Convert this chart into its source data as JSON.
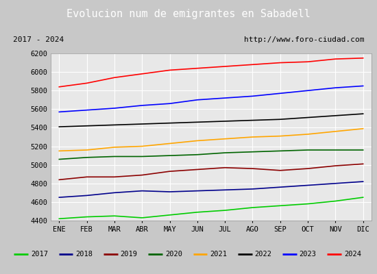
{
  "title": "Evolucion num de emigrantes en Sabadell",
  "title_bg": "#4472c4",
  "subtitle_left": "2017 - 2024",
  "subtitle_right": "http://www.foro-ciudad.com",
  "months": [
    "ENE",
    "FEB",
    "MAR",
    "ABR",
    "MAY",
    "JUN",
    "JUL",
    "AGO",
    "SEP",
    "OCT",
    "NOV",
    "DIC"
  ],
  "ylim": [
    4400,
    6200
  ],
  "yticks": [
    4400,
    4600,
    4800,
    5000,
    5200,
    5400,
    5600,
    5800,
    6000,
    6200
  ],
  "series": {
    "2017": {
      "color": "#00cc00",
      "values": [
        4420,
        4440,
        4450,
        4430,
        4460,
        4490,
        4510,
        4540,
        4560,
        4580,
        4610,
        4650
      ]
    },
    "2018": {
      "color": "#00008b",
      "values": [
        4650,
        4670,
        4700,
        4720,
        4710,
        4720,
        4730,
        4740,
        4760,
        4780,
        4800,
        4820
      ]
    },
    "2019": {
      "color": "#8b0000",
      "values": [
        4840,
        4870,
        4870,
        4890,
        4930,
        4950,
        4970,
        4960,
        4940,
        4960,
        4990,
        5010
      ]
    },
    "2020": {
      "color": "#006400",
      "values": [
        5060,
        5080,
        5090,
        5090,
        5100,
        5110,
        5130,
        5140,
        5150,
        5160,
        5160,
        5160
      ]
    },
    "2021": {
      "color": "#ffa500",
      "values": [
        5150,
        5160,
        5190,
        5200,
        5230,
        5260,
        5280,
        5300,
        5310,
        5330,
        5360,
        5390
      ]
    },
    "2022": {
      "color": "#000000",
      "values": [
        5410,
        5420,
        5430,
        5440,
        5450,
        5460,
        5470,
        5480,
        5490,
        5510,
        5530,
        5550
      ]
    },
    "2023": {
      "color": "#0000ff",
      "values": [
        5570,
        5590,
        5610,
        5640,
        5660,
        5700,
        5720,
        5740,
        5770,
        5800,
        5830,
        5850
      ]
    },
    "2024": {
      "color": "#ff0000",
      "values": [
        5840,
        5880,
        5940,
        5980,
        6020,
        6040,
        6060,
        6080,
        6100,
        6110,
        6140,
        6150
      ]
    }
  },
  "bg_color": "#c8c8c8",
  "plot_bg": "#e8e8e8",
  "grid_color": "#ffffff",
  "border_color": "#a0a0a0"
}
